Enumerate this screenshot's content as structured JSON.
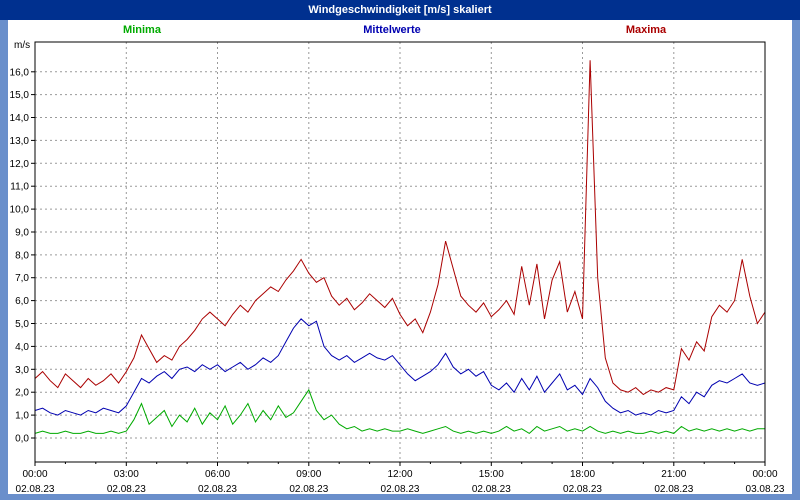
{
  "window": {
    "title": "Windgeschwindigkeit [m/s] skaliert"
  },
  "legend": {
    "minima": "Minima",
    "mittelwerte": "Mittelwerte",
    "maxima": "Maxima"
  },
  "axis_unit": "m/s",
  "colors": {
    "frame": "#6a8fcb",
    "titlebar": "#00308f",
    "grid": "#9a9a9a",
    "axis": "#000000",
    "minima": "#00aa00",
    "mittelwerte": "#0000b0",
    "maxima": "#aa0000"
  },
  "chart_data": {
    "type": "line",
    "title": "Windgeschwindigkeit [m/s] skaliert",
    "ylabel": "m/s",
    "xlabel": "",
    "grid": true,
    "legend_position": "top",
    "ylim": [
      -1.05,
      17.3
    ],
    "yticks": [
      0,
      1,
      2,
      3,
      4,
      5,
      6,
      7,
      8,
      9,
      10,
      11,
      12,
      13,
      14,
      15,
      16
    ],
    "ytick_format": "comma-decimal",
    "x_start_hour": 0,
    "x_end_hour": 24,
    "step_minutes": 15,
    "xticks": [
      "00:00",
      "03:00",
      "06:00",
      "09:00",
      "12:00",
      "15:00",
      "18:00",
      "21:00",
      "00:00"
    ],
    "xtick_hours": [
      0,
      3,
      6,
      9,
      12,
      15,
      18,
      21,
      24
    ],
    "dates": [
      "02.08.23",
      "02.08.23",
      "02.08.23",
      "02.08.23",
      "02.08.23",
      "02.08.23",
      "02.08.23",
      "02.08.23",
      "03.08.23"
    ],
    "series": [
      {
        "name": "Minima",
        "color": "#00aa00",
        "values": [
          0.2,
          0.3,
          0.2,
          0.2,
          0.3,
          0.2,
          0.2,
          0.3,
          0.2,
          0.2,
          0.3,
          0.2,
          0.3,
          0.8,
          1.5,
          0.6,
          0.9,
          1.2,
          0.5,
          1.0,
          0.7,
          1.3,
          0.6,
          1.1,
          0.8,
          1.4,
          0.6,
          1.0,
          1.5,
          0.7,
          1.2,
          0.8,
          1.4,
          0.9,
          1.1,
          1.6,
          2.1,
          1.2,
          0.8,
          1.0,
          0.6,
          0.4,
          0.5,
          0.3,
          0.4,
          0.3,
          0.4,
          0.3,
          0.3,
          0.4,
          0.3,
          0.2,
          0.3,
          0.4,
          0.5,
          0.3,
          0.2,
          0.3,
          0.2,
          0.3,
          0.2,
          0.3,
          0.5,
          0.3,
          0.4,
          0.2,
          0.5,
          0.3,
          0.4,
          0.5,
          0.3,
          0.4,
          0.3,
          0.5,
          0.3,
          0.2,
          0.3,
          0.2,
          0.3,
          0.2,
          0.2,
          0.3,
          0.2,
          0.3,
          0.2,
          0.5,
          0.3,
          0.4,
          0.3,
          0.4,
          0.3,
          0.4,
          0.3,
          0.4,
          0.3,
          0.4,
          0.4
        ]
      },
      {
        "name": "Mittelwerte",
        "color": "#0000b0",
        "values": [
          1.2,
          1.3,
          1.1,
          1.0,
          1.2,
          1.1,
          1.0,
          1.2,
          1.1,
          1.3,
          1.2,
          1.1,
          1.4,
          2.0,
          2.6,
          2.4,
          2.7,
          2.9,
          2.6,
          3.0,
          3.1,
          2.9,
          3.2,
          3.0,
          3.2,
          2.9,
          3.1,
          3.3,
          3.0,
          3.2,
          3.5,
          3.3,
          3.6,
          4.2,
          4.8,
          5.2,
          4.9,
          5.1,
          4.0,
          3.6,
          3.4,
          3.6,
          3.3,
          3.5,
          3.7,
          3.5,
          3.4,
          3.6,
          3.2,
          2.8,
          2.5,
          2.7,
          2.9,
          3.2,
          3.7,
          3.1,
          2.8,
          3.0,
          2.7,
          2.9,
          2.3,
          2.1,
          2.4,
          2.0,
          2.6,
          2.1,
          2.7,
          2.0,
          2.4,
          2.8,
          2.1,
          2.3,
          1.9,
          2.6,
          2.2,
          1.6,
          1.3,
          1.1,
          1.2,
          1.0,
          1.1,
          1.0,
          1.2,
          1.1,
          1.2,
          1.8,
          1.5,
          2.0,
          1.8,
          2.3,
          2.5,
          2.4,
          2.6,
          2.8,
          2.4,
          2.3,
          2.4
        ]
      },
      {
        "name": "Maxima",
        "color": "#aa0000",
        "values": [
          2.6,
          2.9,
          2.5,
          2.2,
          2.8,
          2.5,
          2.2,
          2.6,
          2.3,
          2.5,
          2.8,
          2.4,
          2.9,
          3.5,
          4.5,
          3.9,
          3.3,
          3.6,
          3.4,
          4.0,
          4.3,
          4.7,
          5.2,
          5.5,
          5.2,
          4.9,
          5.4,
          5.8,
          5.5,
          6.0,
          6.3,
          6.6,
          6.4,
          6.9,
          7.3,
          7.8,
          7.2,
          6.8,
          7.0,
          6.2,
          5.8,
          6.1,
          5.6,
          5.9,
          6.3,
          6.0,
          5.7,
          6.1,
          5.4,
          4.9,
          5.2,
          4.6,
          5.5,
          6.7,
          8.6,
          7.4,
          6.2,
          5.8,
          5.5,
          5.9,
          5.3,
          5.6,
          6.0,
          5.4,
          7.5,
          5.8,
          7.6,
          5.2,
          6.9,
          7.7,
          5.5,
          6.4,
          5.2,
          16.5,
          7.0,
          3.5,
          2.4,
          2.1,
          2.0,
          2.2,
          1.9,
          2.1,
          2.0,
          2.2,
          2.1,
          3.9,
          3.4,
          4.2,
          3.8,
          5.3,
          5.8,
          5.5,
          6.0,
          7.8,
          6.2,
          5.0,
          5.5
        ]
      }
    ]
  }
}
